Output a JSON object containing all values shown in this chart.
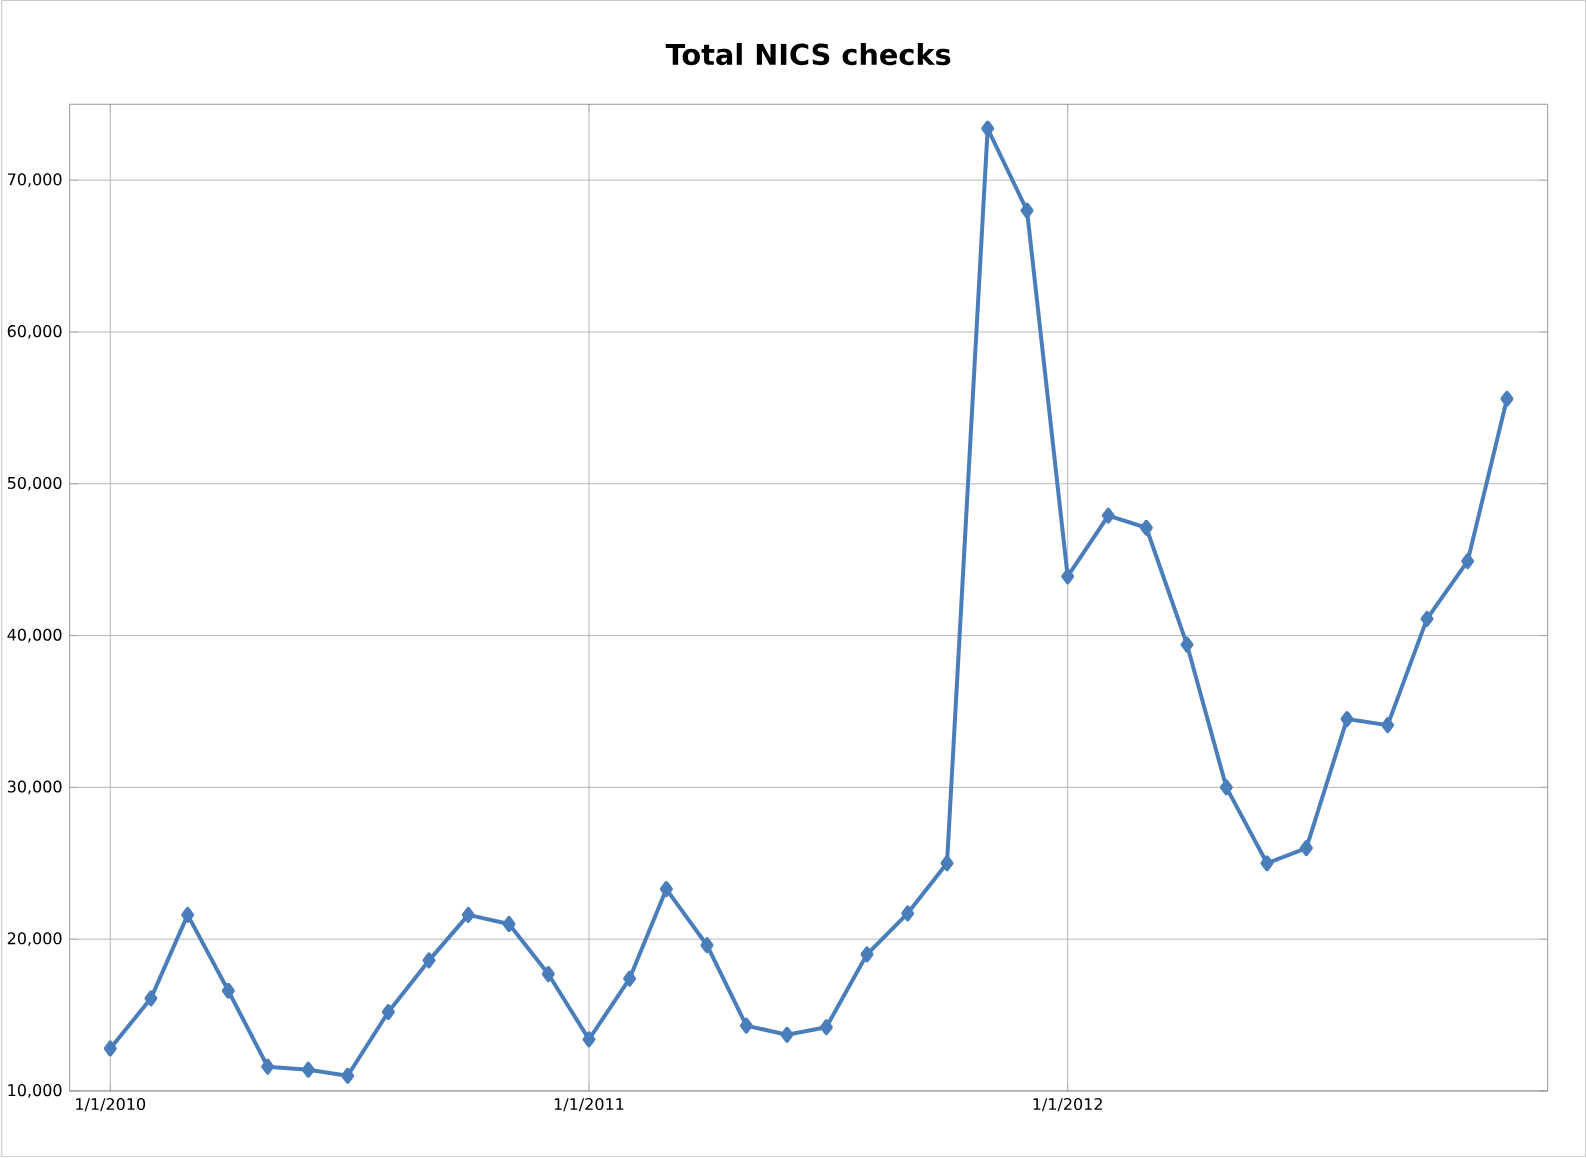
{
  "chart_data": {
    "type": "line",
    "title": "Total NICS checks",
    "x": [
      "2010-01",
      "2010-02",
      "2010-03",
      "2010-04",
      "2010-05",
      "2010-06",
      "2010-07",
      "2010-08",
      "2010-09",
      "2010-10",
      "2010-11",
      "2010-12",
      "2011-01",
      "2011-02",
      "2011-03",
      "2011-04",
      "2011-05",
      "2011-06",
      "2011-07",
      "2011-08",
      "2011-09",
      "2011-10",
      "2011-11",
      "2011-12",
      "2012-01",
      "2012-02",
      "2012-03",
      "2012-04",
      "2012-05",
      "2012-06",
      "2012-07",
      "2012-08",
      "2012-09",
      "2012-10",
      "2012-11",
      "2012-12"
    ],
    "series": [
      {
        "color": "#4a7ebb",
        "values": [
          12800,
          16100,
          21600,
          16600,
          11600,
          11400,
          11000,
          15200,
          18600,
          21600,
          21000,
          17700,
          13400,
          17400,
          23300,
          19600,
          14300,
          13700,
          14200,
          19000,
          21700,
          25000,
          73400,
          68000,
          43900,
          47900,
          47100,
          39400,
          30000,
          25000,
          26000,
          34500,
          34100,
          41100,
          44900,
          55600
        ]
      }
    ],
    "xlim": [
      "2009-12",
      "2013-01"
    ],
    "xticks": [
      {
        "value": "2010-01-01",
        "label": "1/1/2010"
      },
      {
        "value": "2011-01-01",
        "label": "1/1/2011"
      },
      {
        "value": "2012-01-01",
        "label": "1/1/2012"
      }
    ],
    "ylim": [
      10000,
      75000
    ],
    "yticks": [
      {
        "value": 10000,
        "label": "10,000"
      },
      {
        "value": 20000,
        "label": "20,000"
      },
      {
        "value": 30000,
        "label": "30,000"
      },
      {
        "value": 40000,
        "label": "40,000"
      },
      {
        "value": 50000,
        "label": "50,000"
      },
      {
        "value": 60000,
        "label": "60,000"
      },
      {
        "value": 70000,
        "label": "70,000"
      }
    ],
    "grid": true,
    "marker": "diamond",
    "line_style": "solid"
  }
}
